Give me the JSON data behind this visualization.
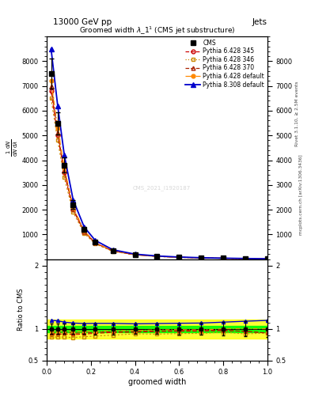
{
  "title_top": "13000 GeV pp",
  "title_right": "Jets",
  "plot_title": "Groomed width $\\lambda$_1$^1$ (CMS jet substructure)",
  "xlabel": "groomed width",
  "ylabel_ratio": "Ratio to CMS",
  "watermark": "CMS_2021_I1920187",
  "right_label_combined": "mcplots.cern.ch [arXiv:1306.3436]",
  "right_label_rivet": "Rivet 3.1.10, ≥ 2.5M events",
  "x_data": [
    0.02,
    0.05,
    0.08,
    0.12,
    0.17,
    0.22,
    0.3,
    0.4,
    0.5,
    0.6,
    0.7,
    0.8,
    0.9,
    1.0
  ],
  "cms_y": [
    7500,
    5500,
    3800,
    2200,
    1200,
    700,
    350,
    190,
    120,
    80,
    55,
    38,
    25,
    15
  ],
  "cms_yerr": [
    600,
    450,
    300,
    180,
    100,
    60,
    30,
    16,
    10,
    7,
    5,
    4,
    3,
    2
  ],
  "py6_345_y": [
    6800,
    5000,
    3500,
    2000,
    1100,
    650,
    330,
    180,
    115,
    77,
    53,
    37,
    24,
    14
  ],
  "py6_346_y": [
    6500,
    4800,
    3300,
    1900,
    1050,
    620,
    315,
    175,
    110,
    74,
    51,
    36,
    23,
    14
  ],
  "py6_370_y": [
    7000,
    5100,
    3600,
    2050,
    1120,
    660,
    335,
    182,
    116,
    78,
    54,
    37,
    24,
    14
  ],
  "py6_def_y": [
    7200,
    5300,
    3700,
    2100,
    1150,
    670,
    340,
    185,
    118,
    79,
    54,
    38,
    25,
    15
  ],
  "py8_def_y": [
    8500,
    6200,
    4200,
    2400,
    1300,
    760,
    380,
    205,
    130,
    87,
    60,
    42,
    28,
    17
  ],
  "yticks_main": [
    1000,
    2000,
    3000,
    4000,
    5000,
    6000,
    7000,
    8000
  ],
  "ylim_main": [
    0,
    9000
  ],
  "ylim_ratio": [
    0.5,
    2.1
  ],
  "cms_color": "#000000",
  "py6_345_color": "#cc0000",
  "py6_346_color": "#cc8800",
  "py6_370_color": "#aa2200",
  "py6_def_color": "#ff8800",
  "py8_def_color": "#0000cc",
  "ratio_green_band": 0.05,
  "ratio_yellow_band": 0.15
}
